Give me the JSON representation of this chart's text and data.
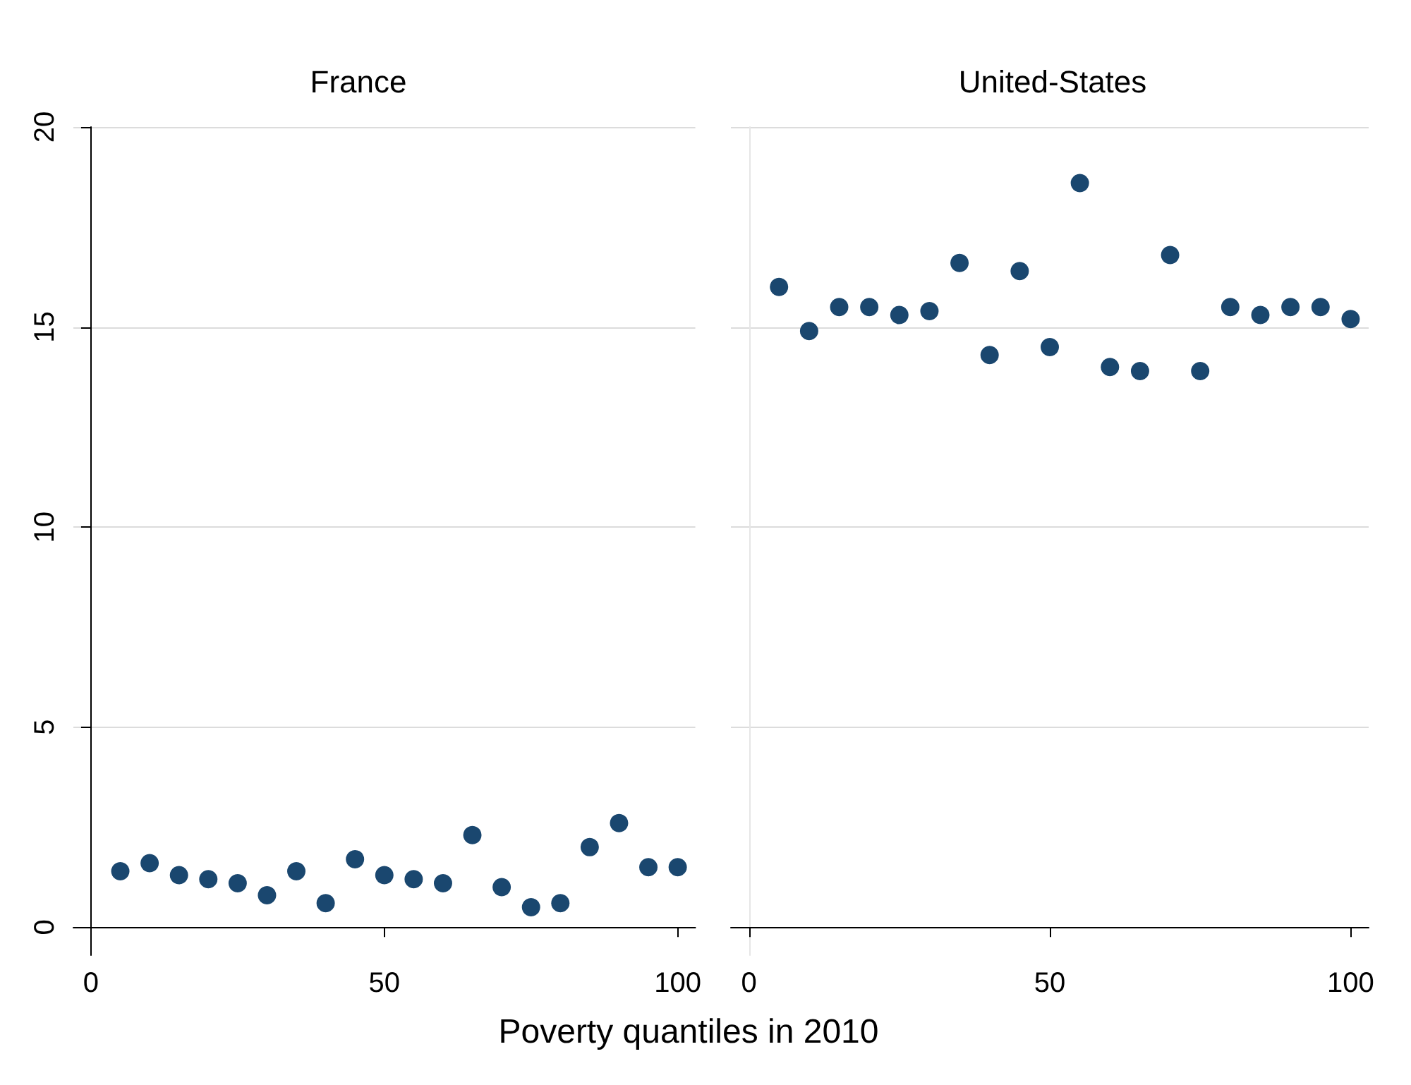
{
  "chart_data": [
    {
      "type": "scatter",
      "title": "France",
      "xlabel": "Poverty quantiles in 2010",
      "x": [
        5,
        10,
        15,
        20,
        25,
        30,
        35,
        40,
        45,
        50,
        55,
        60,
        65,
        70,
        75,
        80,
        85,
        90,
        95,
        100
      ],
      "series": [
        {
          "color": "#1a476f",
          "values": [
            1.4,
            1.6,
            1.3,
            1.2,
            1.1,
            0.8,
            1.4,
            0.6,
            1.7,
            1.3,
            1.2,
            1.1,
            2.3,
            1.0,
            0.5,
            0.6,
            2.0,
            2.6,
            1.5,
            1.5
          ]
        }
      ],
      "xlim": [
        -3,
        103
      ],
      "xticks": [
        0,
        50,
        100
      ],
      "ylim": [
        -0.7,
        20
      ],
      "yticks": [
        0,
        5,
        10,
        15,
        20
      ],
      "grid": "y",
      "marker": "circle"
    },
    {
      "type": "scatter",
      "title": "United-States",
      "x": [
        5,
        10,
        15,
        20,
        25,
        30,
        35,
        40,
        45,
        50,
        55,
        60,
        65,
        70,
        75,
        80,
        85,
        90,
        95,
        100
      ],
      "series": [
        {
          "color": "#1a476f",
          "values": [
            16.0,
            14.9,
            15.5,
            15.5,
            15.3,
            15.4,
            16.6,
            14.3,
            16.4,
            14.5,
            18.6,
            14.0,
            13.9,
            16.8,
            13.9,
            15.5,
            15.3,
            15.5,
            15.5,
            15.2
          ]
        }
      ],
      "xlim": [
        -3,
        103
      ],
      "xticks": [
        0,
        50,
        100
      ],
      "ylim": [
        -0.7,
        20
      ],
      "yticks": [
        0,
        5,
        10,
        15,
        20
      ],
      "grid": "y",
      "marker": "circle",
      "tick_labels": "x"
    }
  ]
}
